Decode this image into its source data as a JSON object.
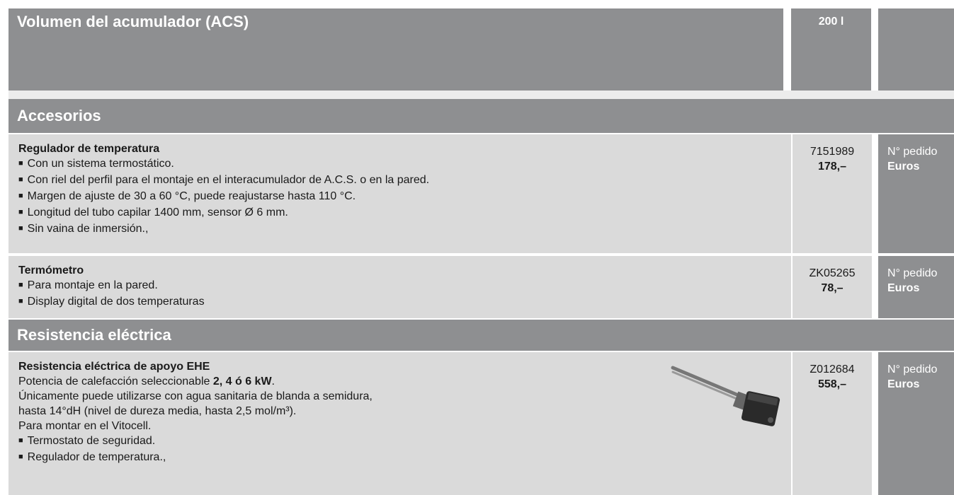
{
  "header": {
    "title": "Volumen del acumulador (ACS)",
    "volume": "200 l"
  },
  "sections": [
    {
      "title": "Accesorios",
      "items": [
        {
          "title": "Regulador de temperatura",
          "lines": [],
          "bullets": [
            "Con un sistema termostático.",
            "Con riel del perfil para el montaje en el interacumulador de A.C.S. o en la pared.",
            "Margen de ajuste de 30 a 60 °C, puede reajustarse hasta 110 °C.",
            "Longitud del tubo capilar 1400 mm, sensor Ø 6 mm.",
            "Sin vaina de inmersión.,"
          ],
          "order_no": "7151989",
          "price": "178,–",
          "labels": [
            "N° pedido",
            "Euros"
          ]
        },
        {
          "title": "Termómetro",
          "lines": [],
          "bullets": [
            "Para montaje en la pared.",
            "Display digital de dos temperaturas"
          ],
          "order_no": "ZK05265",
          "price": "78,–",
          "labels": [
            "N° pedido",
            "Euros"
          ]
        }
      ]
    },
    {
      "title": "Resistencia eléctrica",
      "items": [
        {
          "title": "Resistencia eléctrica de apoyo EHE",
          "lines": [
            [
              "Potencia de calefacción seleccionable ",
              {
                "b": "2, 4 ó 6 kW"
              },
              "."
            ],
            [
              "Únicamente puede utilizarse con agua sanitaria de blanda a semidura,"
            ],
            [
              "hasta 14°dH (nivel de dureza media, hasta 2,5 mol/m³)."
            ],
            [
              "Para montar en el Vitocell."
            ]
          ],
          "bullets": [
            "Termostato de seguridad.",
            "Regulador de temperatura.,"
          ],
          "order_no": "Z012684",
          "price": "558,–",
          "labels": [
            "N° pedido",
            "Euros"
          ]
        }
      ]
    }
  ]
}
